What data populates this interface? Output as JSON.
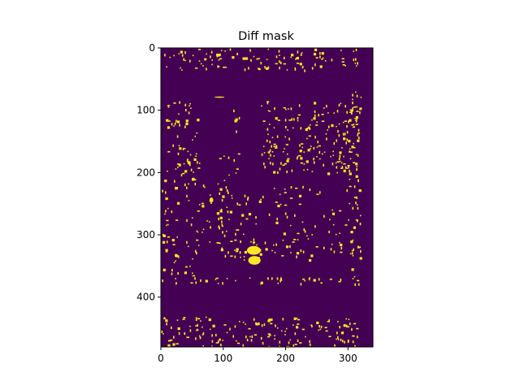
{
  "chart_data": {
    "type": "heatmap",
    "title": "Diff mask",
    "xlabel": "",
    "ylabel": "",
    "image_width": 340,
    "image_height": 480,
    "xlim": [
      0,
      340
    ],
    "ylim": [
      480,
      0
    ],
    "x_ticks": [
      0,
      100,
      200,
      300
    ],
    "x_tick_labels": [
      "0",
      "100",
      "200",
      "300"
    ],
    "y_ticks": [
      0,
      100,
      200,
      300,
      400
    ],
    "y_tick_labels": [
      "0",
      "100",
      "200",
      "300",
      "400"
    ],
    "grid": false,
    "legend": "none",
    "colormap": "viridis",
    "background_color": "#440154",
    "mask_color": "#fde725",
    "value_range": [
      0,
      1
    ],
    "dense_blobs": [
      {
        "x": [
          138,
          160
        ],
        "y": [
          318,
          332
        ]
      },
      {
        "x": [
          140,
          160
        ],
        "y": [
          334,
          348
        ]
      },
      {
        "x": [
          78,
          84
        ],
        "y": [
          240,
          248
        ]
      },
      {
        "x": [
          86,
          102
        ],
        "y": [
          78,
          80
        ]
      }
    ],
    "scattered_pixel_regions": [
      {
        "x": [
          0,
          320
        ],
        "y": [
          0,
          35
        ],
        "density": 0.05
      },
      {
        "x": [
          0,
          320
        ],
        "y": [
          368,
          378
        ],
        "density": 0.06
      },
      {
        "x": [
          0,
          320
        ],
        "y": [
          430,
          480
        ],
        "density": 0.05
      },
      {
        "x": [
          0,
          60
        ],
        "y": [
          85,
          370
        ],
        "density": 0.035
      },
      {
        "x": [
          60,
          125
        ],
        "y": [
          170,
          330
        ],
        "density": 0.02
      },
      {
        "x": [
          115,
          125
        ],
        "y": [
          85,
          200
        ],
        "density": 0.04
      },
      {
        "x": [
          160,
          320
        ],
        "y": [
          85,
          200
        ],
        "density": 0.055
      },
      {
        "x": [
          90,
          320
        ],
        "y": [
          220,
          340
        ],
        "density": 0.025
      },
      {
        "x": [
          300,
          320
        ],
        "y": [
          60,
          380
        ],
        "density": 0.04
      }
    ]
  }
}
